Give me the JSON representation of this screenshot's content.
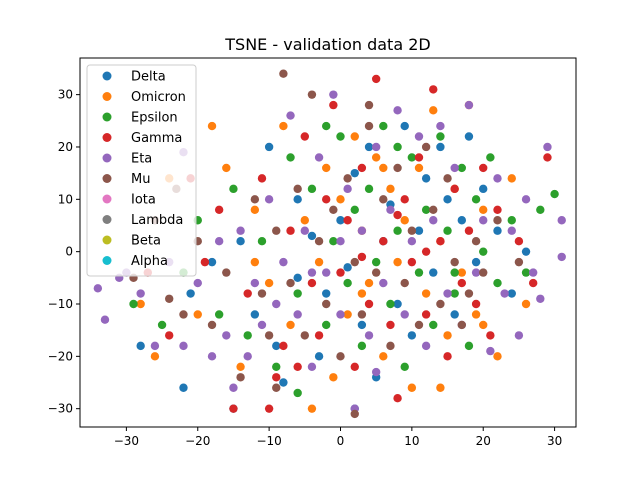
{
  "chart_data": {
    "type": "scatter",
    "title": "TSNE - validation data 2D",
    "xlabel": "",
    "ylabel": "",
    "xlim": [
      -36.5,
      33
    ],
    "ylim": [
      -33.5,
      37
    ],
    "xticks": [
      -30,
      -20,
      -10,
      0,
      10,
      20,
      30
    ],
    "yticks": [
      -30,
      -20,
      -10,
      0,
      10,
      20,
      30
    ],
    "xtick_labels": [
      "−30",
      "−20",
      "−10",
      "0",
      "10",
      "20",
      "30"
    ],
    "ytick_labels": [
      "−30",
      "−20",
      "−10",
      "0",
      "10",
      "20",
      "30"
    ],
    "grid": false,
    "legend": {
      "position": "upper-left",
      "entries": [
        "Delta",
        "Omicron",
        "Epsilon",
        "Gamma",
        "Eta",
        "Mu",
        "Iota",
        "Lambda",
        "Beta",
        "Alpha"
      ]
    },
    "series": [
      {
        "name": "Delta",
        "color": "#1f77b4",
        "points": [
          [
            -28,
            -18
          ],
          [
            -22,
            -26
          ],
          [
            -15,
            -30
          ],
          [
            -21,
            -8
          ],
          [
            -18,
            -2
          ],
          [
            -14,
            2
          ],
          [
            -12,
            -12
          ],
          [
            -9,
            -18
          ],
          [
            -6,
            -5
          ],
          [
            -4,
            3
          ],
          [
            -2,
            -8
          ],
          [
            0,
            6
          ],
          [
            1,
            -3
          ],
          [
            2,
            15
          ],
          [
            3,
            -14
          ],
          [
            4,
            20
          ],
          [
            5,
            -24
          ],
          [
            6,
            2
          ],
          [
            7,
            9
          ],
          [
            8,
            -10
          ],
          [
            9,
            24
          ],
          [
            10,
            -16
          ],
          [
            11,
            4
          ],
          [
            12,
            14
          ],
          [
            13,
            -4
          ],
          [
            14,
            20
          ],
          [
            15,
            10
          ],
          [
            16,
            -12
          ],
          [
            17,
            6
          ],
          [
            18,
            22
          ],
          [
            19,
            -2
          ],
          [
            20,
            12
          ],
          [
            22,
            4
          ],
          [
            24,
            -8
          ],
          [
            26,
            0
          ],
          [
            -10,
            20
          ],
          [
            -6,
            10
          ],
          [
            -3,
            -20
          ],
          [
            -8,
            -25
          ],
          [
            2,
            -30
          ]
        ]
      },
      {
        "name": "Omicron",
        "color": "#ff7f0e",
        "points": [
          [
            -26,
            -20
          ],
          [
            -28,
            -10
          ],
          [
            -24,
            14
          ],
          [
            -20,
            -12
          ],
          [
            -16,
            16
          ],
          [
            -14,
            -22
          ],
          [
            -12,
            8
          ],
          [
            -10,
            -6
          ],
          [
            -8,
            24
          ],
          [
            -7,
            -14
          ],
          [
            -5,
            6
          ],
          [
            -3,
            -2
          ],
          [
            -2,
            16
          ],
          [
            -1,
            -24
          ],
          [
            0,
            10
          ],
          [
            1,
            -12
          ],
          [
            2,
            22
          ],
          [
            3,
            4
          ],
          [
            4,
            -6
          ],
          [
            5,
            18
          ],
          [
            6,
            -20
          ],
          [
            7,
            12
          ],
          [
            8,
            -2
          ],
          [
            9,
            6
          ],
          [
            10,
            -26
          ],
          [
            11,
            16
          ],
          [
            12,
            -8
          ],
          [
            13,
            27
          ],
          [
            14,
            2
          ],
          [
            15,
            -16
          ],
          [
            16,
            12
          ],
          [
            17,
            -4
          ],
          [
            18,
            28
          ],
          [
            19,
            -12
          ],
          [
            20,
            8
          ],
          [
            22,
            -20
          ],
          [
            24,
            14
          ],
          [
            26,
            -10
          ],
          [
            -18,
            24
          ],
          [
            -4,
            -30
          ],
          [
            6,
            16
          ],
          [
            -12,
            -2
          ],
          [
            3,
            -8
          ],
          [
            14,
            -26
          ],
          [
            20,
            -14
          ]
        ]
      },
      {
        "name": "Epsilon",
        "color": "#2ca02c",
        "points": [
          [
            -29,
            -10
          ],
          [
            -25,
            -14
          ],
          [
            -22,
            -4
          ],
          [
            -20,
            6
          ],
          [
            -17,
            -12
          ],
          [
            -15,
            12
          ],
          [
            -13,
            -16
          ],
          [
            -11,
            2
          ],
          [
            -9,
            -22
          ],
          [
            -7,
            18
          ],
          [
            -6,
            -8
          ],
          [
            -4,
            12
          ],
          [
            -2,
            -14
          ],
          [
            -1,
            2
          ],
          [
            0,
            22
          ],
          [
            1,
            -6
          ],
          [
            2,
            8
          ],
          [
            3,
            -18
          ],
          [
            4,
            12
          ],
          [
            5,
            -2
          ],
          [
            6,
            24
          ],
          [
            7,
            -10
          ],
          [
            8,
            4
          ],
          [
            9,
            -22
          ],
          [
            10,
            18
          ],
          [
            11,
            -4
          ],
          [
            12,
            8
          ],
          [
            13,
            -14
          ],
          [
            14,
            22
          ],
          [
            15,
            4
          ],
          [
            16,
            -8
          ],
          [
            17,
            16
          ],
          [
            18,
            -18
          ],
          [
            19,
            10
          ],
          [
            20,
            0
          ],
          [
            21,
            18
          ],
          [
            22,
            -6
          ],
          [
            24,
            6
          ],
          [
            26,
            -4
          ],
          [
            28,
            8
          ],
          [
            30,
            11
          ],
          [
            -6,
            -27
          ],
          [
            -2,
            24
          ],
          [
            8,
            20
          ],
          [
            16,
            -4
          ]
        ]
      },
      {
        "name": "Gamma",
        "color": "#d62728",
        "points": [
          [
            -27,
            -4
          ],
          [
            -24,
            -16
          ],
          [
            -21,
            14
          ],
          [
            -19,
            -2
          ],
          [
            -17,
            8
          ],
          [
            -15,
            -30
          ],
          [
            -13,
            -8
          ],
          [
            -11,
            14
          ],
          [
            -10,
            -30
          ],
          [
            -8,
            -18
          ],
          [
            -7,
            4
          ],
          [
            -5,
            22
          ],
          [
            -4,
            -6
          ],
          [
            -3,
            -16
          ],
          [
            -2,
            10
          ],
          [
            -1,
            28
          ],
          [
            0,
            -4
          ],
          [
            1,
            6
          ],
          [
            2,
            -22
          ],
          [
            3,
            16
          ],
          [
            4,
            -10
          ],
          [
            5,
            33
          ],
          [
            6,
            2
          ],
          [
            7,
            -14
          ],
          [
            8,
            -28
          ],
          [
            9,
            10
          ],
          [
            10,
            -2
          ],
          [
            11,
            18
          ],
          [
            12,
            -12
          ],
          [
            13,
            31
          ],
          [
            14,
            2
          ],
          [
            15,
            -20
          ],
          [
            16,
            12
          ],
          [
            17,
            -6
          ],
          [
            18,
            4
          ],
          [
            19,
            -10
          ],
          [
            20,
            16
          ],
          [
            21,
            -16
          ],
          [
            22,
            8
          ],
          [
            25,
            2
          ],
          [
            27,
            -6
          ],
          [
            29,
            18
          ],
          [
            -9,
            -24
          ],
          [
            -6,
            -22
          ],
          [
            12,
            0
          ],
          [
            8,
            7
          ],
          [
            3,
            -1
          ]
        ]
      },
      {
        "name": "Eta",
        "color": "#9467bd",
        "points": [
          [
            -34,
            -7
          ],
          [
            -33,
            -13
          ],
          [
            -30,
            -4
          ],
          [
            -28,
            -8
          ],
          [
            -26,
            -18
          ],
          [
            -24,
            -2
          ],
          [
            -22,
            -18
          ],
          [
            -20,
            -6
          ],
          [
            -18,
            -20
          ],
          [
            -17,
            2
          ],
          [
            -16,
            -16
          ],
          [
            -15,
            -26
          ],
          [
            -14,
            4
          ],
          [
            -13,
            -20
          ],
          [
            -12,
            -6
          ],
          [
            -11,
            -14
          ],
          [
            -10,
            10
          ],
          [
            -9,
            -10
          ],
          [
            -8,
            -2
          ],
          [
            -7,
            26
          ],
          [
            -6,
            -12
          ],
          [
            -5,
            4
          ],
          [
            -4,
            -22
          ],
          [
            -3,
            18
          ],
          [
            -2,
            -4
          ],
          [
            -1,
            30
          ],
          [
            0,
            -12
          ],
          [
            1,
            12
          ],
          [
            2,
            -30
          ],
          [
            3,
            4
          ],
          [
            4,
            -16
          ],
          [
            5,
            20
          ],
          [
            6,
            -6
          ],
          [
            7,
            8
          ],
          [
            8,
            27
          ],
          [
            9,
            -12
          ],
          [
            10,
            2
          ],
          [
            11,
            22
          ],
          [
            12,
            -18
          ],
          [
            13,
            6
          ],
          [
            14,
            24
          ],
          [
            15,
            -8
          ],
          [
            16,
            16
          ],
          [
            17,
            -14
          ],
          [
            18,
            28
          ],
          [
            19,
            -4
          ],
          [
            20,
            6
          ],
          [
            21,
            -19
          ],
          [
            22,
            14
          ],
          [
            23,
            -8
          ],
          [
            24,
            4
          ],
          [
            25,
            -16
          ],
          [
            26,
            10
          ],
          [
            27,
            -4
          ],
          [
            28,
            -9
          ],
          [
            29,
            20
          ],
          [
            31,
            6
          ],
          [
            31,
            -1
          ],
          [
            -22,
            19
          ],
          [
            -31,
            -5
          ],
          [
            5,
            -23
          ],
          [
            -4,
            -4
          ],
          [
            0,
            2
          ]
        ]
      },
      {
        "name": "Mu",
        "color": "#8c564b",
        "points": [
          [
            -29,
            -5
          ],
          [
            -26,
            6
          ],
          [
            -24,
            -9
          ],
          [
            -22,
            -12
          ],
          [
            -20,
            2
          ],
          [
            -18,
            -14
          ],
          [
            -16,
            -4
          ],
          [
            -14,
            -24
          ],
          [
            -12,
            10
          ],
          [
            -11,
            -8
          ],
          [
            -10,
            -16
          ],
          [
            -9,
            4
          ],
          [
            -8,
            34
          ],
          [
            -7,
            -6
          ],
          [
            -6,
            12
          ],
          [
            -5,
            -16
          ],
          [
            -4,
            30
          ],
          [
            -3,
            2
          ],
          [
            -2,
            -10
          ],
          [
            -1,
            8
          ],
          [
            0,
            -20
          ],
          [
            1,
            14
          ],
          [
            2,
            -2
          ],
          [
            3,
            -12
          ],
          [
            4,
            24
          ],
          [
            5,
            -4
          ],
          [
            6,
            10
          ],
          [
            7,
            -18
          ],
          [
            8,
            16
          ],
          [
            9,
            -6
          ],
          [
            10,
            4
          ],
          [
            11,
            -14
          ],
          [
            12,
            20
          ],
          [
            13,
            8
          ],
          [
            14,
            -10
          ],
          [
            15,
            14
          ],
          [
            16,
            -2
          ],
          [
            17,
            -14
          ],
          [
            18,
            -8
          ],
          [
            19,
            2
          ],
          [
            20,
            -4
          ],
          [
            22,
            6
          ],
          [
            25,
            -2
          ],
          [
            -23,
            12
          ],
          [
            -9,
            -26
          ],
          [
            4,
            28
          ],
          [
            2,
            -31
          ]
        ]
      },
      {
        "name": "Iota",
        "color": "#e377c2",
        "points": []
      },
      {
        "name": "Lambda",
        "color": "#7f7f7f",
        "points": []
      },
      {
        "name": "Beta",
        "color": "#bcbd22",
        "points": []
      },
      {
        "name": "Alpha",
        "color": "#17becf",
        "points": []
      }
    ]
  }
}
